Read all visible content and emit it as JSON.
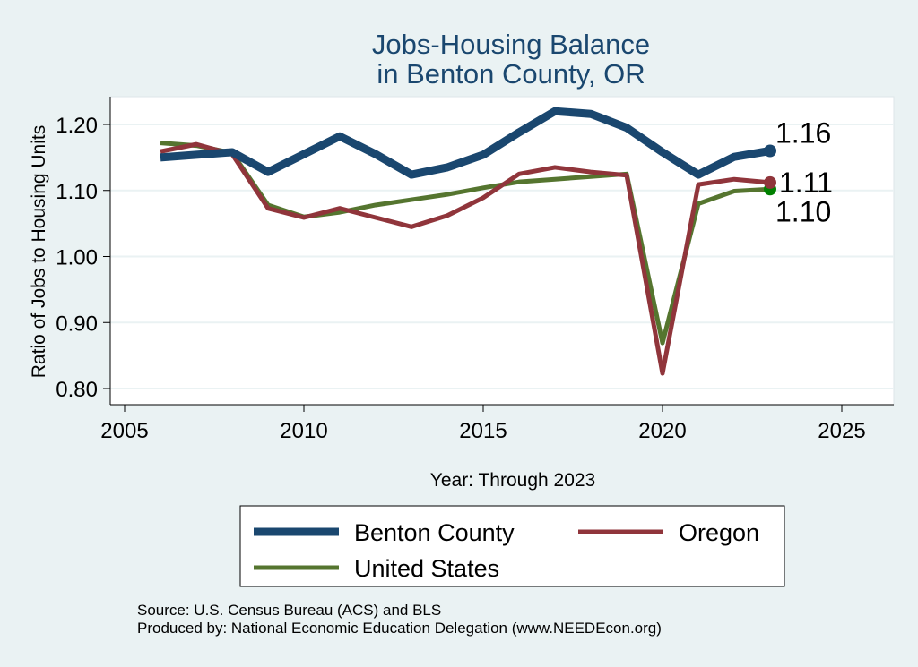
{
  "chart_data": {
    "type": "line",
    "title": [
      "Jobs-Housing Balance",
      "in Benton County, OR"
    ],
    "xlabel": "Year: Through 2023",
    "ylabel": "Ratio of Jobs to Housing Units",
    "xlim": [
      2004.6,
      2026.45
    ],
    "ylim": [
      0.776,
      1.242
    ],
    "xticks": [
      2005,
      2010,
      2015,
      2020,
      2025
    ],
    "yticks": [
      0.8,
      0.9,
      1.0,
      1.1,
      1.2
    ],
    "ytick_labels": [
      "0.80",
      "0.90",
      "1.00",
      "1.10",
      "1.20"
    ],
    "grid": true,
    "legend_position": "bottom",
    "x": [
      2006,
      2007,
      2008,
      2009,
      2010,
      2011,
      2012,
      2013,
      2014,
      2015,
      2016,
      2017,
      2018,
      2019,
      2020,
      2021,
      2022,
      2023
    ],
    "series": [
      {
        "name": "Benton County",
        "color": "#1a476f",
        "end_label": "1.16",
        "values": [
          1.15,
          1.154,
          1.158,
          1.128,
          1.155,
          1.182,
          1.155,
          1.124,
          1.135,
          1.154,
          1.188,
          1.22,
          1.216,
          1.195,
          1.158,
          1.124,
          1.151,
          1.16
        ]
      },
      {
        "name": "Oregon",
        "color": "#90353b",
        "end_label": "1.11",
        "values": [
          1.159,
          1.17,
          1.155,
          1.073,
          1.059,
          1.073,
          1.059,
          1.045,
          1.062,
          1.089,
          1.125,
          1.135,
          1.128,
          1.123,
          0.823,
          1.109,
          1.117,
          1.112
        ]
      },
      {
        "name": "United States",
        "color": "#55752f",
        "end_label": "1.10",
        "marker_color": "#008000",
        "values": [
          1.172,
          1.168,
          1.157,
          1.078,
          1.06,
          1.067,
          1.078,
          1.086,
          1.094,
          1.104,
          1.113,
          1.117,
          1.121,
          1.125,
          0.869,
          1.08,
          1.099,
          1.102
        ]
      }
    ]
  },
  "notes": {
    "source": "Source: U.S. Census Bureau (ACS) and BLS",
    "produced_by": "Produced by: National Economic Education Delegation (www.NEEDEcon.org)"
  },
  "colors": {
    "background": "#eaf2f3",
    "plot_background": "#ffffff",
    "title": "#1a476f"
  }
}
